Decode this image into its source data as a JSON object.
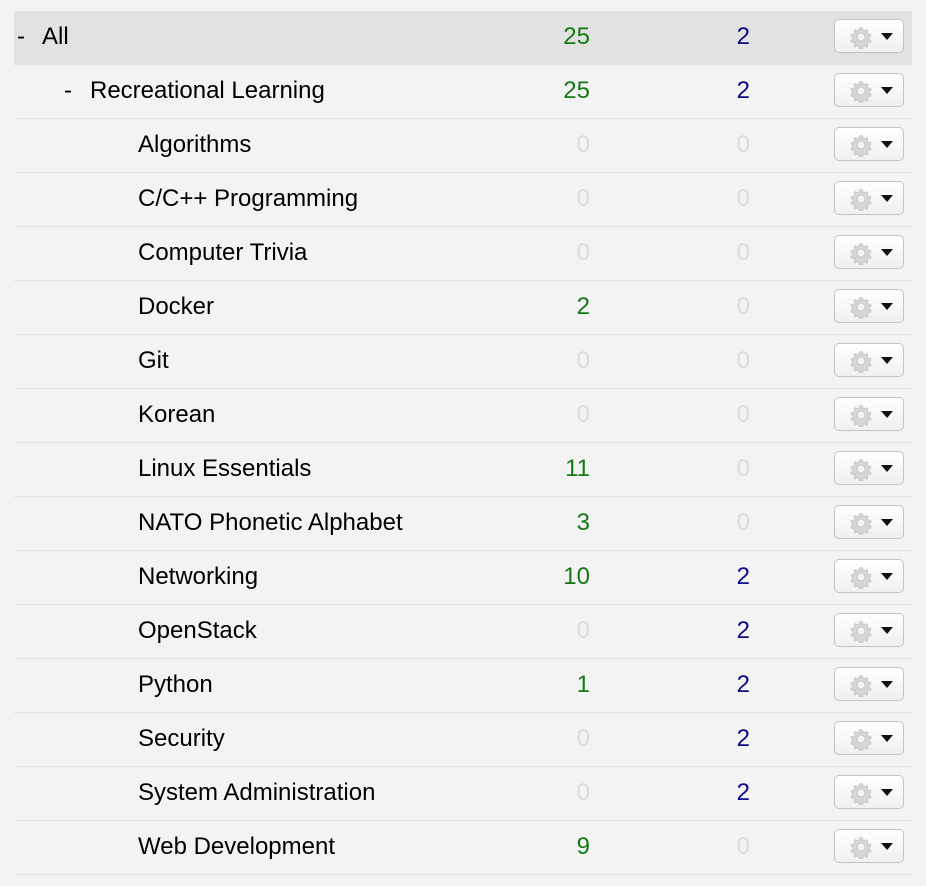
{
  "deck_browser": {
    "rows": [
      {
        "toggle": "-",
        "name": "All",
        "new": "25",
        "due": "2",
        "level": 0,
        "current": true
      },
      {
        "toggle": "-",
        "name": "Recreational Learning",
        "new": "25",
        "due": "2",
        "level": 1,
        "current": false
      },
      {
        "toggle": "",
        "name": "Algorithms",
        "new": "0",
        "due": "0",
        "level": 2,
        "current": false
      },
      {
        "toggle": "",
        "name": "C/C++ Programming",
        "new": "0",
        "due": "0",
        "level": 2,
        "current": false
      },
      {
        "toggle": "",
        "name": "Computer Trivia",
        "new": "0",
        "due": "0",
        "level": 2,
        "current": false
      },
      {
        "toggle": "",
        "name": "Docker",
        "new": "2",
        "due": "0",
        "level": 2,
        "current": false
      },
      {
        "toggle": "",
        "name": "Git",
        "new": "0",
        "due": "0",
        "level": 2,
        "current": false
      },
      {
        "toggle": "",
        "name": "Korean",
        "new": "0",
        "due": "0",
        "level": 2,
        "current": false
      },
      {
        "toggle": "",
        "name": "Linux Essentials",
        "new": "11",
        "due": "0",
        "level": 2,
        "current": false
      },
      {
        "toggle": "",
        "name": "NATO Phonetic Alphabet",
        "new": "3",
        "due": "0",
        "level": 2,
        "current": false
      },
      {
        "toggle": "",
        "name": "Networking",
        "new": "10",
        "due": "2",
        "level": 2,
        "current": false
      },
      {
        "toggle": "",
        "name": "OpenStack",
        "new": "0",
        "due": "2",
        "level": 2,
        "current": false
      },
      {
        "toggle": "",
        "name": "Python",
        "new": "1",
        "due": "2",
        "level": 2,
        "current": false
      },
      {
        "toggle": "",
        "name": "Security",
        "new": "0",
        "due": "2",
        "level": 2,
        "current": false
      },
      {
        "toggle": "",
        "name": "System Administration",
        "new": "0",
        "due": "2",
        "level": 2,
        "current": false
      },
      {
        "toggle": "",
        "name": "Web Development",
        "new": "9",
        "due": "0",
        "level": 2,
        "current": false
      }
    ],
    "options_icon": "gear-icon",
    "dropdown_icon": "caret-down-icon",
    "colors": {
      "new_count": "#137a13",
      "due_count": "#0b0b87",
      "zero_count": "#dcdcdc",
      "current_row_bg": "#e2e2e2"
    }
  }
}
